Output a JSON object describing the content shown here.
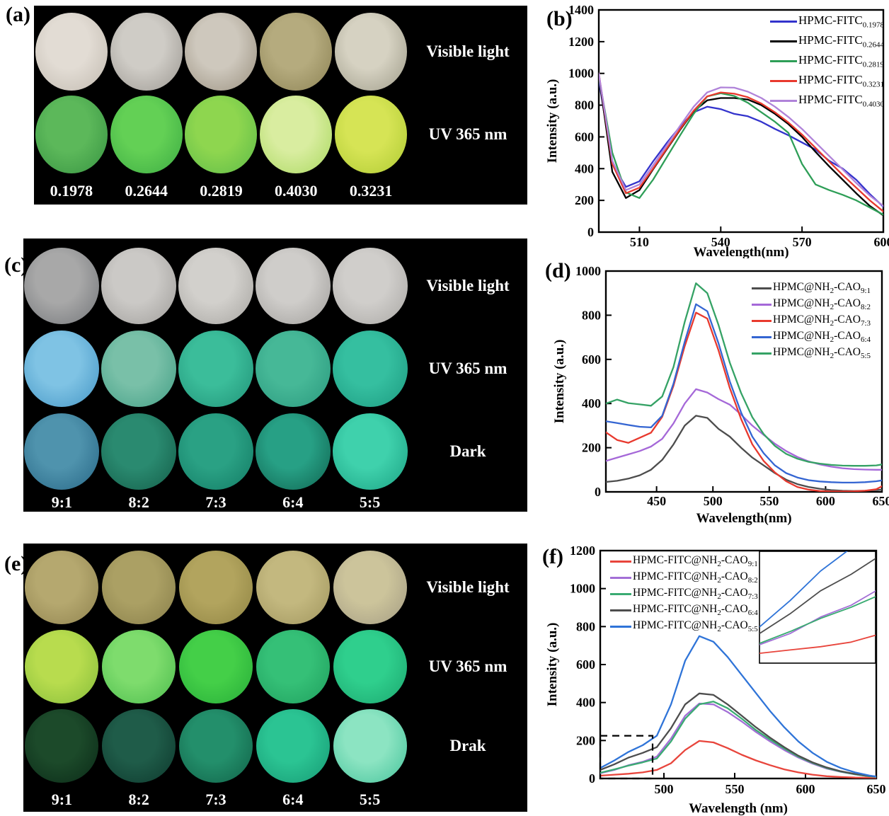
{
  "figure_bg": "#ffffff",
  "panels": {
    "a": {
      "letter": "(a)",
      "rows": [
        {
          "label": "Visible light",
          "discs": [
            {
              "c1": "#e2dcd4",
              "c2": "#c7c0b6"
            },
            {
              "c1": "#cfccc6",
              "c2": "#a5a19b"
            },
            {
              "c1": "#cec8bd",
              "c2": "#a39a8a"
            },
            {
              "c1": "#b5ab7e",
              "c2": "#948a5c"
            },
            {
              "c1": "#d6d2c2",
              "c2": "#a8a593"
            }
          ]
        },
        {
          "label": "UV 365 nm",
          "discs": [
            {
              "c1": "#5cb85a",
              "c2": "#3e9a46"
            },
            {
              "c1": "#63d055",
              "c2": "#43b246"
            },
            {
              "c1": "#8ed64f",
              "c2": "#66c049"
            },
            {
              "c1": "#d9eda0",
              "c2": "#b2dc6b"
            },
            {
              "c1": "#d6e455",
              "c2": "#b6cf39"
            }
          ]
        }
      ],
      "bottom_labels": [
        "0.1978",
        "0.2644",
        "0.2819",
        "0.4030",
        "0.3231"
      ]
    },
    "c": {
      "letter": "(c)",
      "rows": [
        {
          "label": "Visible light",
          "discs": [
            {
              "c1": "#a8a8a8",
              "c2": "#7d7f82"
            },
            {
              "c1": "#cbc9c6",
              "c2": "#a7a5a2"
            },
            {
              "c1": "#d2d0cc",
              "c2": "#aeaca8"
            },
            {
              "c1": "#cfcdca",
              "c2": "#a9a7a4"
            },
            {
              "c1": "#d0cecb",
              "c2": "#b0aeab"
            }
          ]
        },
        {
          "label": "UV 365 nm",
          "discs": [
            {
              "c1": "#7fc3e4",
              "c2": "#4f9ecb"
            },
            {
              "c1": "#79c0a8",
              "c2": "#4da58c"
            },
            {
              "c1": "#3bbd9a",
              "c2": "#259a7e"
            },
            {
              "c1": "#46b897",
              "c2": "#2f9e82"
            },
            {
              "c1": "#35bfa0",
              "c2": "#21a186"
            }
          ]
        },
        {
          "label": "Dark",
          "discs": [
            {
              "c1": "#4f93ad",
              "c2": "#2f6f8d"
            },
            {
              "c1": "#2a8a70",
              "c2": "#186650"
            },
            {
              "c1": "#2aa184",
              "c2": "#17826a"
            },
            {
              "c1": "#27a085",
              "c2": "#146f5a"
            },
            {
              "c1": "#3fd1ac",
              "c2": "#22ab8b"
            }
          ]
        }
      ],
      "bottom_labels": [
        "9:1",
        "8:2",
        "7:3",
        "6:4",
        "5:5"
      ]
    },
    "e": {
      "letter": "(e)",
      "rows": [
        {
          "label": "Visible light",
          "discs": [
            {
              "c1": "#b5a86f",
              "c2": "#978a55"
            },
            {
              "c1": "#aba064",
              "c2": "#8f854f"
            },
            {
              "c1": "#b2a45e",
              "c2": "#968a48"
            },
            {
              "c1": "#c3b87f",
              "c2": "#a79c64"
            },
            {
              "c1": "#ccc49b",
              "c2": "#aba387"
            }
          ]
        },
        {
          "label": "UV 365 nm",
          "discs": [
            {
              "c1": "#b8dc4e",
              "c2": "#8fc33e"
            },
            {
              "c1": "#7edc6d",
              "c2": "#55c253"
            },
            {
              "c1": "#44cf48",
              "c2": "#2cb33b"
            },
            {
              "c1": "#35c077",
              "c2": "#23a562"
            },
            {
              "c1": "#2fcf8d",
              "c2": "#1fae74"
            }
          ]
        },
        {
          "label": "Drak",
          "discs": [
            {
              "c1": "#1c4a2a",
              "c2": "#0e301b"
            },
            {
              "c1": "#1f5c49",
              "c2": "#113f32"
            },
            {
              "c1": "#238f6b",
              "c2": "#146a4e"
            },
            {
              "c1": "#2bc493",
              "c2": "#1aa179"
            },
            {
              "c1": "#8ce4c2",
              "c2": "#52c9a2"
            }
          ]
        }
      ],
      "bottom_labels": [
        "9:1",
        "8:2",
        "7:3",
        "6:4",
        "5:5"
      ]
    }
  },
  "chart_data": [
    {
      "id": "b",
      "type": "line",
      "panel_letter": "(b)",
      "xlabel": "Wavelength(nm)",
      "ylabel": "Intensity (a.u.)",
      "xlim": [
        495,
        600
      ],
      "ylim": [
        0,
        1400
      ],
      "xticks": [
        510,
        540,
        570,
        600
      ],
      "yticks": [
        0,
        200,
        400,
        600,
        800,
        1000,
        1200,
        1400
      ],
      "grid": false,
      "legend_position": "top-right",
      "x": [
        495,
        500,
        505,
        510,
        515,
        520,
        525,
        530,
        535,
        540,
        545,
        550,
        555,
        560,
        565,
        570,
        575,
        580,
        585,
        590,
        595,
        600
      ],
      "series": [
        {
          "label": "HPMC-FITC0.1978",
          "parts": [
            [
              "t",
              "HPMC-FITC"
            ],
            [
              "s",
              "0.1978"
            ]
          ],
          "color": "#3333cc",
          "y": [
            960,
            430,
            285,
            320,
            445,
            560,
            665,
            755,
            790,
            775,
            745,
            730,
            695,
            650,
            610,
            565,
            520,
            450,
            400,
            330,
            240,
            160
          ]
        },
        {
          "label": "HPMC-FITC0.2644",
          "parts": [
            [
              "t",
              "HPMC-FITC"
            ],
            [
              "s",
              "0.2644"
            ]
          ],
          "color": "#000000",
          "y": [
            990,
            380,
            215,
            265,
            395,
            520,
            645,
            760,
            830,
            845,
            845,
            835,
            800,
            745,
            680,
            600,
            505,
            415,
            330,
            245,
            165,
            105
          ]
        },
        {
          "label": "HPMC-FITC0.2819",
          "parts": [
            [
              "t",
              "HPMC-FITC"
            ],
            [
              "s",
              "0.2819"
            ]
          ],
          "color": "#2e9e57",
          "y": [
            980,
            500,
            250,
            215,
            330,
            470,
            610,
            745,
            855,
            875,
            858,
            815,
            755,
            695,
            625,
            430,
            300,
            265,
            235,
            200,
            155,
            110
          ]
        },
        {
          "label": "HPMC-FITC0.3231",
          "parts": [
            [
              "t",
              "HPMC-FITC"
            ],
            [
              "s",
              "0.3231"
            ]
          ],
          "color": "#e8392e",
          "y": [
            1000,
            430,
            245,
            280,
            400,
            525,
            650,
            765,
            855,
            880,
            872,
            850,
            810,
            755,
            690,
            615,
            530,
            445,
            360,
            280,
            200,
            130
          ]
        },
        {
          "label": "HPMC-FITC0.4030",
          "parts": [
            [
              "t",
              "HPMC-FITC"
            ],
            [
              "s",
              "0.4030"
            ]
          ],
          "color": "#b083d9",
          "y": [
            1000,
            450,
            265,
            300,
            420,
            545,
            670,
            790,
            880,
            912,
            910,
            885,
            845,
            790,
            725,
            650,
            565,
            480,
            395,
            310,
            230,
            165
          ]
        }
      ]
    },
    {
      "id": "d",
      "type": "line",
      "panel_letter": "(d)",
      "xlabel": "Wavelength(nm)",
      "ylabel": "Intensity (a.u.)",
      "xlim": [
        405,
        650
      ],
      "ylim": [
        0,
        1000
      ],
      "xticks": [
        450,
        500,
        550,
        600,
        650
      ],
      "yticks": [
        0,
        200,
        400,
        600,
        800,
        1000
      ],
      "grid": false,
      "legend_position": "top-right",
      "x": [
        405,
        415,
        425,
        435,
        445,
        455,
        465,
        475,
        485,
        495,
        505,
        515,
        525,
        535,
        545,
        555,
        565,
        575,
        585,
        595,
        605,
        615,
        625,
        635,
        645,
        650
      ],
      "series": [
        {
          "label": "HPMC@NH2-CAO9:1",
          "parts": [
            [
              "t",
              "HPMC@NH"
            ],
            [
              "s",
              "2"
            ],
            [
              "t",
              "-CAO"
            ],
            [
              "s",
              "9:1"
            ]
          ],
          "color": "#4d4d4d",
          "y": [
            45,
            50,
            60,
            75,
            100,
            145,
            215,
            300,
            345,
            335,
            285,
            250,
            200,
            155,
            120,
            85,
            55,
            35,
            22,
            14,
            8,
            5,
            4,
            5,
            8,
            10
          ]
        },
        {
          "label": "HPMC@NH2-CAO8:2",
          "parts": [
            [
              "t",
              "HPMC@NH"
            ],
            [
              "s",
              "2"
            ],
            [
              "t",
              "-CAO"
            ],
            [
              "s",
              "8:2"
            ]
          ],
          "color": "#a568d8",
          "y": [
            140,
            155,
            170,
            185,
            205,
            240,
            310,
            400,
            465,
            450,
            420,
            395,
            350,
            300,
            258,
            218,
            185,
            158,
            138,
            124,
            114,
            107,
            103,
            101,
            100,
            100
          ]
        },
        {
          "label": "HPMC@NH2-CAO7:3",
          "parts": [
            [
              "t",
              "HPMC@NH"
            ],
            [
              "s",
              "2"
            ],
            [
              "t",
              "-CAO"
            ],
            [
              "s",
              "7:3"
            ]
          ],
          "color": "#e8392e",
          "y": [
            270,
            235,
            222,
            245,
            268,
            340,
            480,
            660,
            812,
            785,
            640,
            470,
            330,
            215,
            140,
            88,
            48,
            22,
            10,
            4,
            2,
            2,
            3,
            5,
            12,
            25
          ]
        },
        {
          "label": "HPMC@NH2-CAO6:4",
          "parts": [
            [
              "t",
              "HPMC@NH"
            ],
            [
              "s",
              "2"
            ],
            [
              "t",
              "-CAO"
            ],
            [
              "s",
              "6:4"
            ]
          ],
          "color": "#3465d2",
          "y": [
            320,
            312,
            303,
            295,
            292,
            345,
            490,
            680,
            850,
            818,
            672,
            500,
            360,
            250,
            175,
            120,
            85,
            65,
            53,
            47,
            44,
            42,
            42,
            44,
            48,
            52
          ]
        },
        {
          "label": "HPMC@NH2-CAO5:5",
          "parts": [
            [
              "t",
              "HPMC@NH"
            ],
            [
              "s",
              "2"
            ],
            [
              "t",
              "-CAO"
            ],
            [
              "s",
              "5:5"
            ]
          ],
          "color": "#35a265",
          "y": [
            400,
            418,
            402,
            396,
            390,
            432,
            565,
            770,
            945,
            900,
            755,
            585,
            448,
            338,
            262,
            208,
            172,
            150,
            136,
            128,
            122,
            119,
            118,
            118,
            120,
            124
          ]
        }
      ]
    },
    {
      "id": "f",
      "type": "line",
      "panel_letter": "(f)",
      "xlabel": "Wavelength (nm)",
      "ylabel": "Intensity (a.u.)",
      "xlim": [
        455,
        650
      ],
      "ylim": [
        0,
        1200
      ],
      "xticks": [
        500,
        550,
        600,
        650
      ],
      "yticks": [
        0,
        200,
        400,
        600,
        800,
        1000,
        1200
      ],
      "grid": false,
      "legend_position": "top-left",
      "dashed_box": {
        "x0": 455,
        "x1": 492,
        "y0": 0,
        "y1": 225
      },
      "inset": {
        "xlim": [
          455,
          493
        ],
        "ylim": [
          0,
          170
        ]
      },
      "x": [
        455,
        465,
        475,
        485,
        495,
        505,
        515,
        525,
        535,
        545,
        555,
        565,
        575,
        585,
        595,
        605,
        615,
        625,
        635,
        645,
        650
      ],
      "series": [
        {
          "label": "HPMC-FITC@NH2-CAO9:1",
          "parts": [
            [
              "t",
              "HPMC-FITC@NH"
            ],
            [
              "s",
              "2"
            ],
            [
              "t",
              "-CAO"
            ],
            [
              "s",
              "9:1"
            ]
          ],
          "color": "#e8453c",
          "y": [
            15,
            20,
            25,
            32,
            45,
            80,
            150,
            198,
            190,
            160,
            125,
            95,
            70,
            48,
            32,
            20,
            12,
            8,
            5,
            4,
            3
          ]
        },
        {
          "label": "HPMC-FITC@NH2-CAO8:2",
          "parts": [
            [
              "t",
              "HPMC-FITC@NH"
            ],
            [
              "s",
              "2"
            ],
            [
              "t",
              "-CAO"
            ],
            [
              "s",
              "8:2"
            ]
          ],
          "color": "#a36fd6",
          "y": [
            28,
            45,
            70,
            88,
            115,
            210,
            330,
            395,
            390,
            350,
            300,
            245,
            195,
            150,
            110,
            78,
            52,
            35,
            22,
            12,
            8
          ]
        },
        {
          "label": "HPMC-FITC@NH2-CAO7:3",
          "parts": [
            [
              "t",
              "HPMC-FITC@NH"
            ],
            [
              "s",
              "2"
            ],
            [
              "t",
              "-CAO"
            ],
            [
              "s",
              "7:3"
            ]
          ],
          "color": "#3aab72",
          "y": [
            30,
            48,
            68,
            85,
            105,
            195,
            315,
            390,
            405,
            370,
            315,
            255,
            205,
            158,
            115,
            82,
            55,
            36,
            22,
            12,
            8
          ]
        },
        {
          "label": "HPMC-FITC@NH2-CAO6:4",
          "parts": [
            [
              "t",
              "HPMC-FITC@NH"
            ],
            [
              "s",
              "2"
            ],
            [
              "t",
              "-CAO"
            ],
            [
              "s",
              "6:4"
            ]
          ],
          "color": "#4d4d4d",
          "y": [
            45,
            75,
            110,
            135,
            165,
            265,
            390,
            448,
            440,
            390,
            330,
            270,
            215,
            165,
            120,
            85,
            58,
            38,
            24,
            14,
            10
          ]
        },
        {
          "label": "HPMC-FITC@NH2-CAO5:5",
          "parts": [
            [
              "t",
              "HPMC-FITC@NH"
            ],
            [
              "s",
              "2"
            ],
            [
              "t",
              "-CAO"
            ],
            [
              "s",
              "5:5"
            ]
          ],
          "color": "#2f74d8",
          "y": [
            55,
            95,
            140,
            175,
            225,
            390,
            620,
            750,
            720,
            640,
            545,
            450,
            355,
            270,
            195,
            135,
            88,
            55,
            32,
            16,
            10
          ]
        }
      ]
    }
  ]
}
